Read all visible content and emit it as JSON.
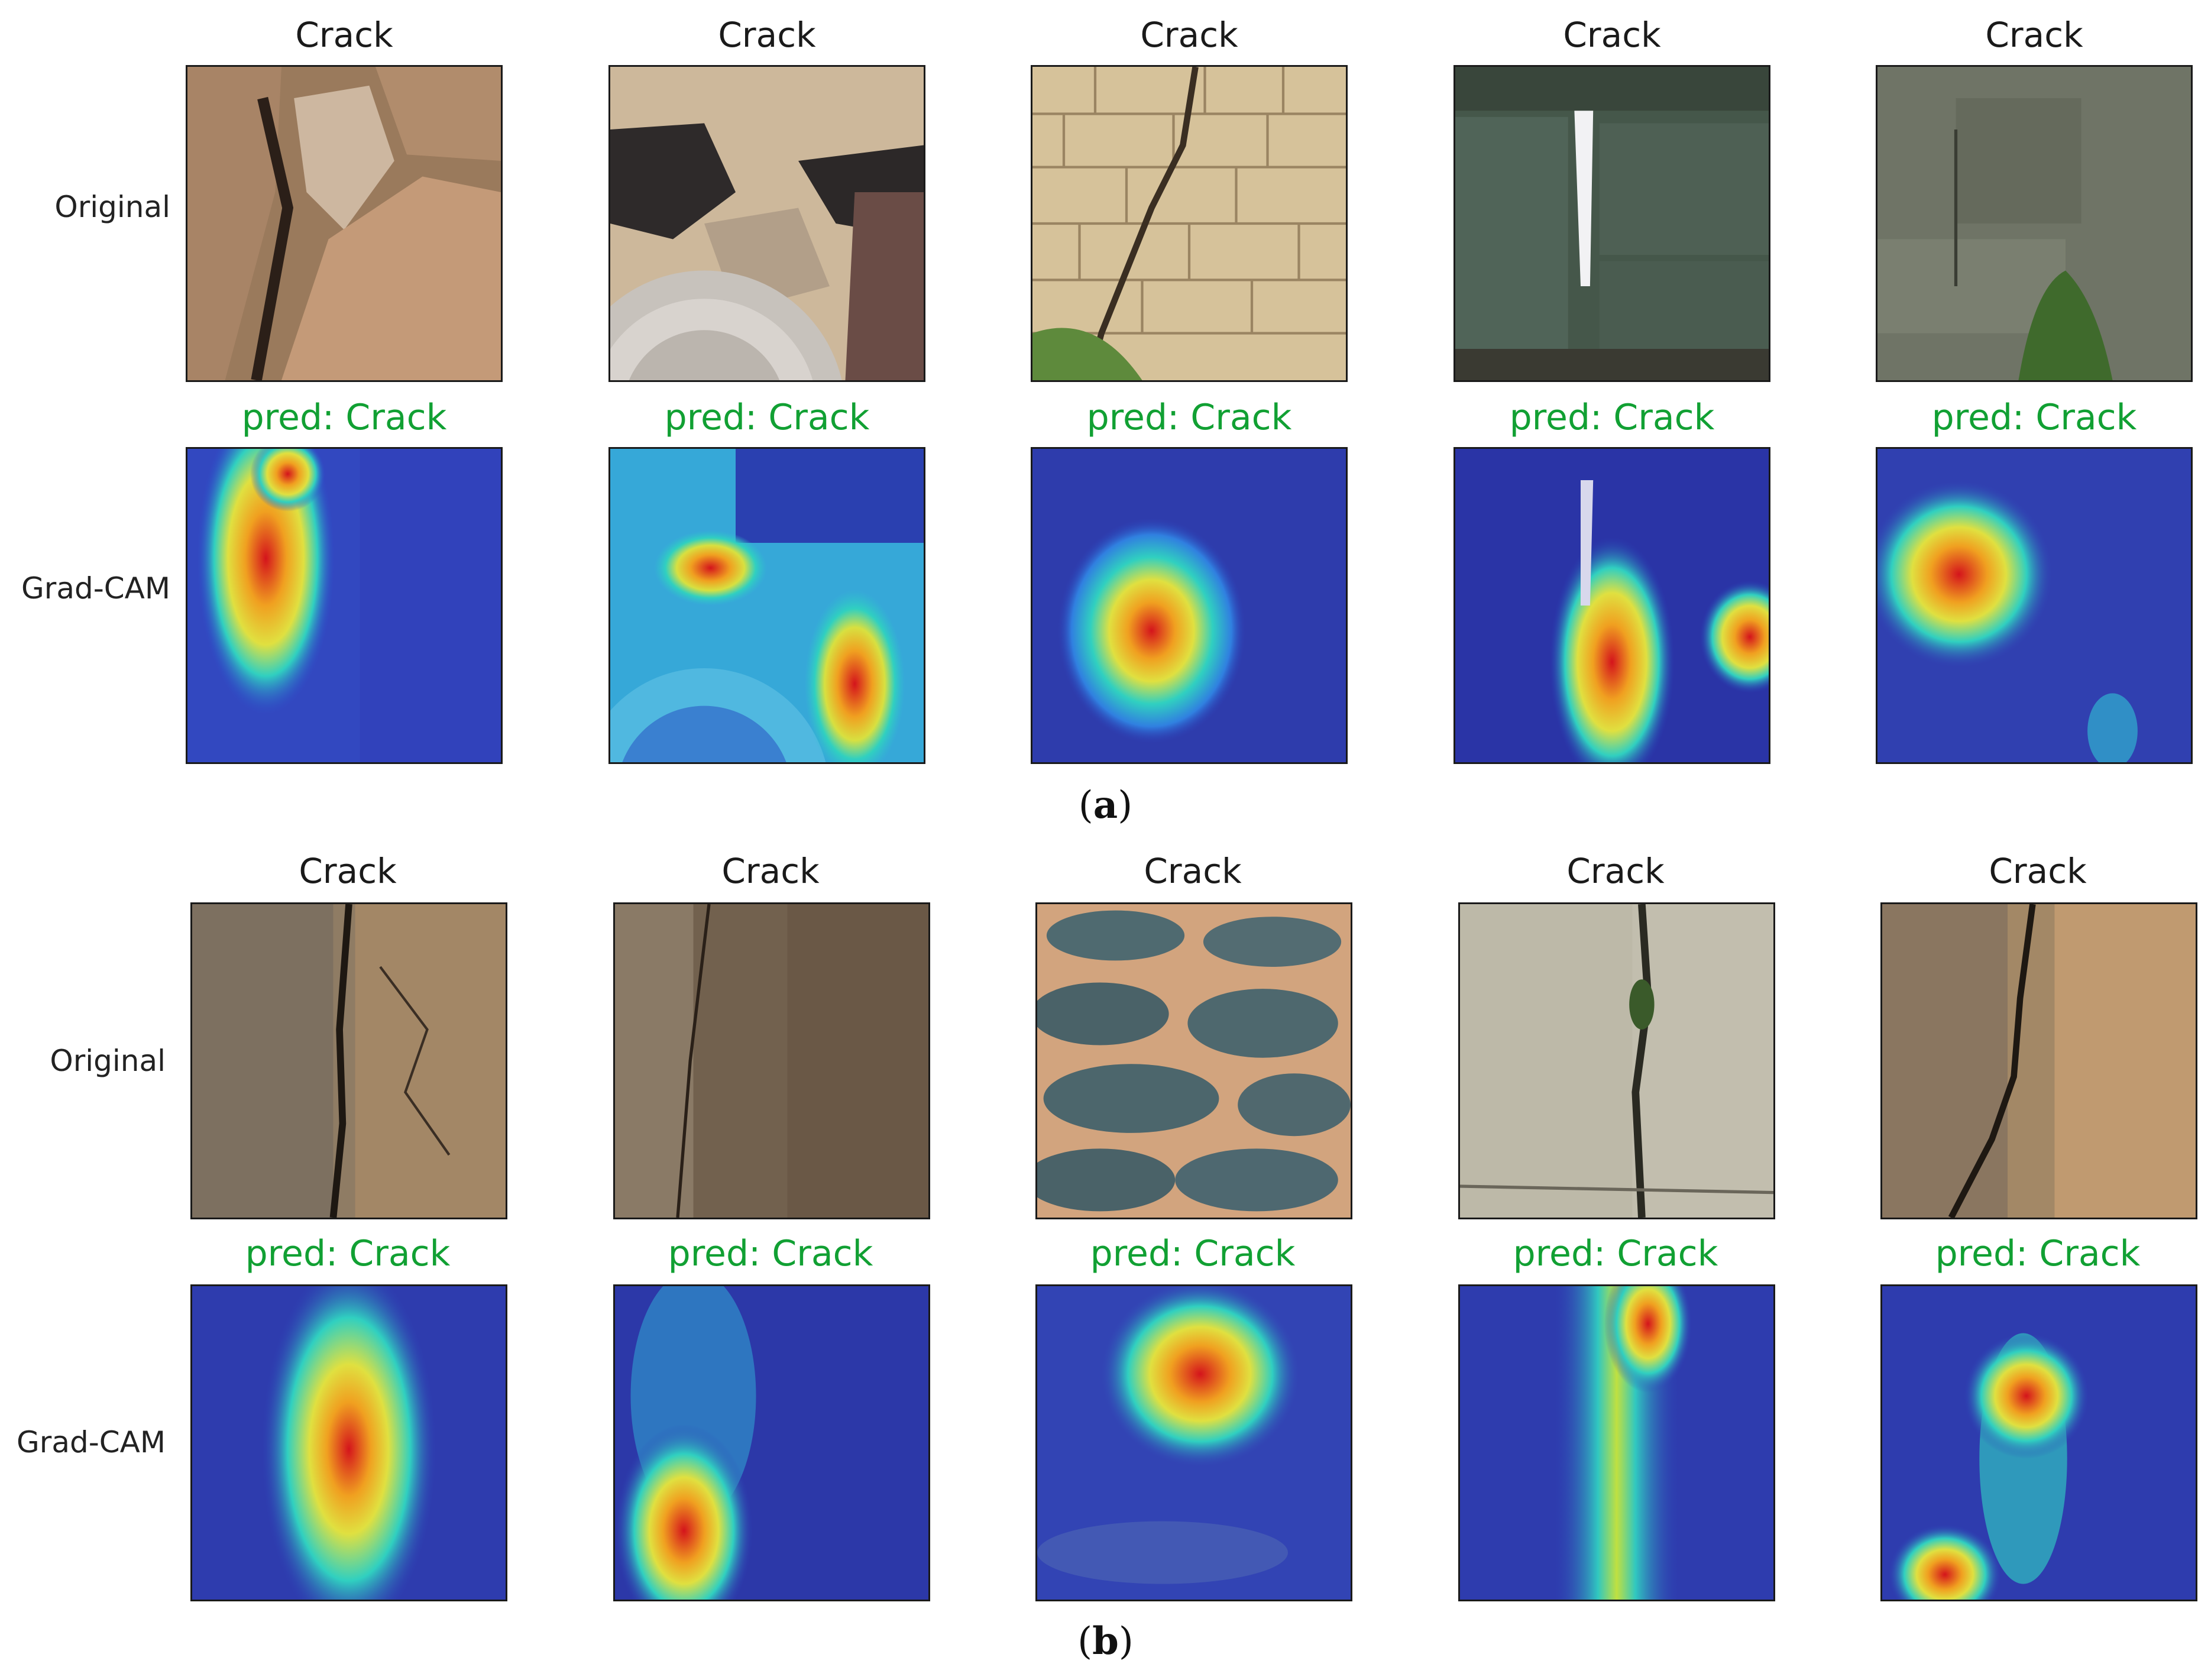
{
  "panels": [
    {
      "caption_open": "(",
      "caption_letter": "a",
      "caption_close": ")",
      "row_labels": {
        "original": "Original",
        "gradcam": "Grad-CAM"
      },
      "columns": [
        {
          "title": "Crack",
          "pred": "pred: Crack"
        },
        {
          "title": "Crack",
          "pred": "pred: Crack"
        },
        {
          "title": "Crack",
          "pred": "pred: Crack"
        },
        {
          "title": "Crack",
          "pred": "pred: Crack"
        },
        {
          "title": "Crack",
          "pred": "pred: Crack"
        }
      ]
    },
    {
      "caption_open": "(",
      "caption_letter": "b",
      "caption_close": ")",
      "row_labels": {
        "original": "Original",
        "gradcam": "Grad-CAM"
      },
      "columns": [
        {
          "title": "Crack",
          "pred": "pred: Crack"
        },
        {
          "title": "Crack",
          "pred": "pred: Crack"
        },
        {
          "title": "Crack",
          "pred": "pred: Crack"
        },
        {
          "title": "Crack",
          "pred": "pred: Crack"
        },
        {
          "title": "Crack",
          "pred": "pred: Crack"
        }
      ]
    }
  ],
  "colors": {
    "pred_text": "#11a033",
    "heatmap_low": "#2a3cb8",
    "heatmap_high": "#d4141c"
  }
}
